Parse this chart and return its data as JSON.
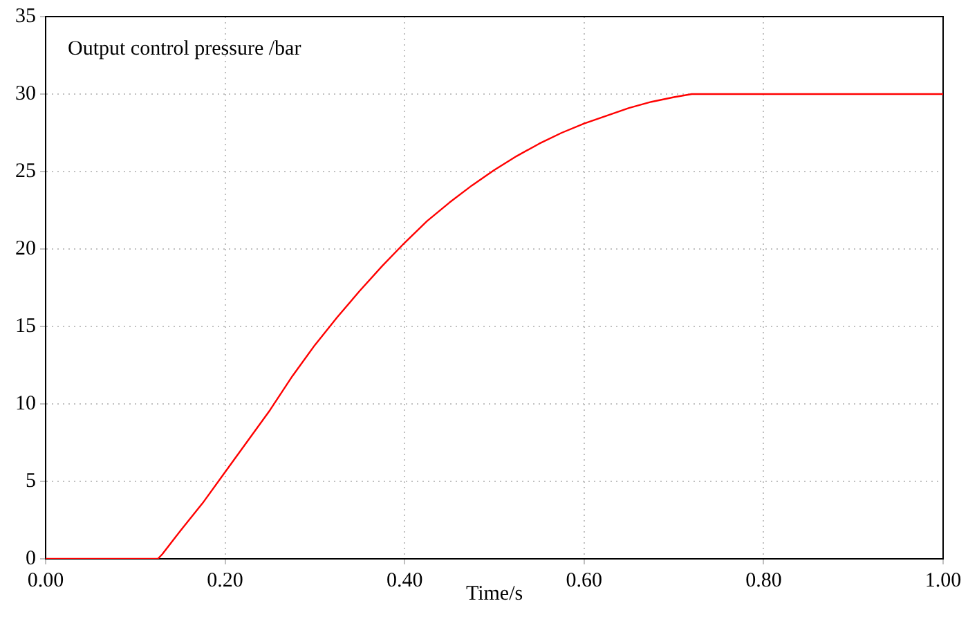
{
  "chart_data": {
    "type": "line",
    "title": "Output control pressure /bar",
    "xlabel": "Time/s",
    "series": [
      {
        "color": "#ff0000",
        "x": [
          0,
          0.05,
          0.1,
          0.125,
          0.13,
          0.15,
          0.175,
          0.2,
          0.225,
          0.25,
          0.275,
          0.3,
          0.325,
          0.35,
          0.375,
          0.4,
          0.425,
          0.45,
          0.475,
          0.5,
          0.525,
          0.55,
          0.575,
          0.6,
          0.625,
          0.65,
          0.675,
          0.7,
          0.72,
          0.8,
          0.9,
          1.0
        ],
        "values": [
          0,
          0,
          0,
          0,
          0.3,
          1.8,
          3.6,
          5.6,
          7.6,
          9.6,
          11.8,
          13.8,
          15.6,
          17.3,
          18.9,
          20.4,
          21.8,
          23.0,
          24.1,
          25.1,
          26.0,
          26.8,
          27.5,
          28.1,
          28.6,
          29.1,
          29.5,
          29.8,
          30,
          30,
          30,
          30
        ]
      }
    ],
    "xlim": [
      0,
      1
    ],
    "xticks": [
      {
        "value": 0,
        "label": "0.00"
      },
      {
        "value": 0.2,
        "label": "0.20"
      },
      {
        "value": 0.4,
        "label": "0.40"
      },
      {
        "value": 0.6,
        "label": "0.60"
      },
      {
        "value": 0.8,
        "label": "0.80"
      },
      {
        "value": 1,
        "label": "1.00"
      }
    ],
    "ylim": [
      0,
      35
    ],
    "yticks": [
      0,
      5,
      10,
      15,
      20,
      25,
      30,
      35
    ],
    "grid": true,
    "legend": false,
    "marker": "none",
    "line_style": "solid"
  }
}
